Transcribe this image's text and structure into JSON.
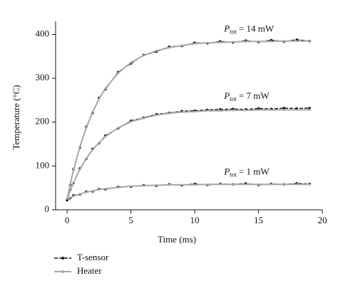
{
  "chart_data": {
    "type": "line",
    "xlabel": "Time (ms)",
    "ylabel": "Temperature (°C)",
    "x": [
      0,
      0.25,
      0.5,
      1,
      1.5,
      2,
      2.5,
      3,
      4,
      5,
      6,
      7,
      8,
      9,
      10,
      11,
      12,
      13,
      14,
      15,
      16,
      17,
      18,
      19
    ],
    "xlim": [
      -0.9,
      20
    ],
    "xticks": [
      0,
      5,
      10,
      15,
      20
    ],
    "ylim": [
      0,
      430
    ],
    "yticks": [
      0,
      100,
      200,
      300,
      400
    ],
    "series": [
      {
        "name": "T-sensor",
        "color": "#111111",
        "line_style": "dashed",
        "marker": "circle",
        "curves": [
          [
            24,
            57,
            92,
            142,
            189,
            221,
            255,
            275,
            314,
            334,
            353,
            361,
            372,
            374,
            381,
            380,
            384,
            382,
            386,
            383,
            387,
            384,
            388,
            385
          ],
          [
            24,
            45,
            61,
            94,
            116,
            139,
            152,
            169,
            186,
            203,
            210,
            218,
            221,
            225,
            226,
            228,
            229,
            230,
            229,
            231,
            230,
            232,
            231,
            232
          ],
          [
            22,
            27,
            33,
            35,
            41,
            42,
            47,
            47,
            52,
            53,
            56,
            55,
            58,
            56,
            59,
            57,
            59,
            58,
            60,
            57,
            59,
            58,
            60,
            59
          ]
        ]
      },
      {
        "name": "Heater",
        "color": "#a8a8a8",
        "line_style": "solid",
        "marker": "circle",
        "curves": [
          [
            25,
            59,
            90,
            144,
            187,
            223,
            253,
            277,
            312,
            336,
            352,
            363,
            370,
            375,
            379,
            381,
            382,
            383,
            384,
            384,
            384,
            385,
            385,
            385
          ],
          [
            25,
            44,
            62,
            92,
            117,
            137,
            153,
            167,
            187,
            201,
            209,
            216,
            220,
            223,
            224,
            226,
            226,
            227,
            227,
            228,
            228,
            228,
            228,
            228
          ],
          [
            25,
            28,
            31,
            36,
            40,
            43,
            46,
            48,
            51,
            54,
            55,
            56,
            57,
            57,
            57,
            58,
            58,
            58,
            58,
            58,
            58,
            58,
            58,
            58
          ]
        ]
      }
    ],
    "annotations": [
      {
        "symbol": "P",
        "sub": "tot",
        "text": " = 14 mW"
      },
      {
        "symbol": "P",
        "sub": "tot",
        "text": " = 7 mW"
      },
      {
        "symbol": "P",
        "sub": "tot",
        "text": " = 1 mW"
      }
    ]
  }
}
